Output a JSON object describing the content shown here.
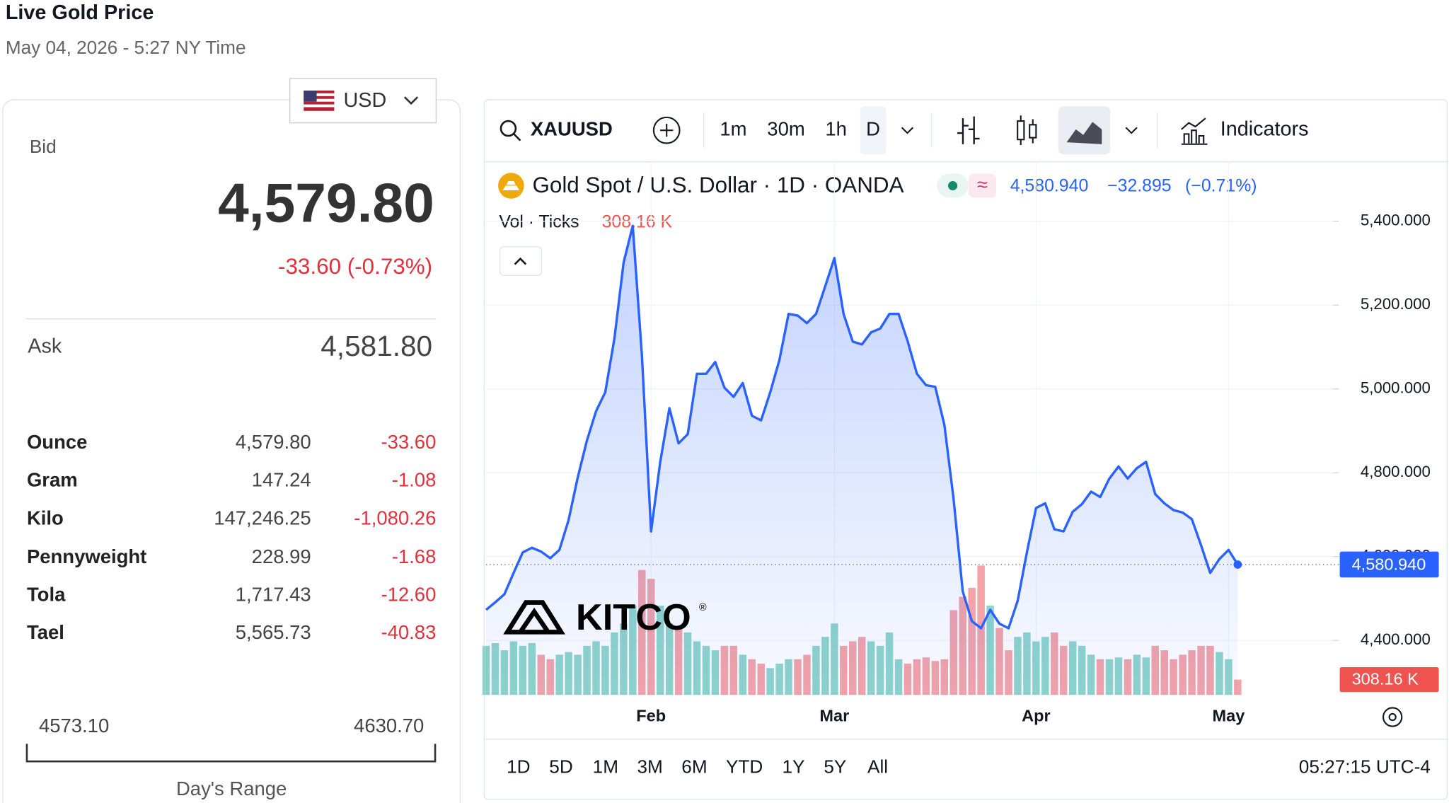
{
  "header": {
    "title": "Live Gold Price",
    "timestamp": "May 04, 2026 - 5:27 NY Time"
  },
  "currency": "USD",
  "quote": {
    "bid_label": "Bid",
    "bid": "4,579.80",
    "change": "-33.60 (-0.73%)",
    "ask_label": "Ask",
    "ask": "4,581.80"
  },
  "units": {
    "rows": [
      {
        "name": "Ounce",
        "price": "4,579.80",
        "change": "-33.60"
      },
      {
        "name": "Gram",
        "price": "147.24",
        "change": "-1.08"
      },
      {
        "name": "Kilo",
        "price": "147,246.25",
        "change": "-1,080.26"
      },
      {
        "name": "Pennyweight",
        "price": "228.99",
        "change": "-1.68"
      },
      {
        "name": "Tola",
        "price": "1,717.43",
        "change": "-12.60"
      },
      {
        "name": "Tael",
        "price": "5,565.73",
        "change": "-40.83"
      }
    ]
  },
  "day_range": {
    "low": "4573.10",
    "high": "4630.70",
    "label": "Day's Range"
  },
  "toolbar": {
    "symbol": "XAUUSD",
    "intervals": [
      "1m",
      "30m",
      "1h",
      "D"
    ],
    "indicators": "Indicators"
  },
  "legend": {
    "approx": "≈",
    "price": "4,580.940",
    "change": "−32.895",
    "change_pct": "(−0.71%)",
    "vol_value": "308.16 K"
  },
  "watermark": {
    "text": "KITCO",
    "mark": "®"
  },
  "chart_data": {
    "type": "line",
    "categories": [
      null,
      null,
      null,
      null,
      null,
      null,
      null,
      null,
      null,
      null,
      null,
      null,
      null,
      null,
      null,
      null,
      null,
      null,
      "Feb",
      null,
      null,
      null,
      null,
      null,
      null,
      null,
      null,
      null,
      null,
      null,
      null,
      null,
      null,
      null,
      null,
      null,
      null,
      null,
      "Mar",
      null,
      null,
      null,
      null,
      null,
      null,
      null,
      null,
      null,
      null,
      null,
      null,
      null,
      null,
      null,
      null,
      null,
      null,
      null,
      null,
      null,
      "Apr",
      null,
      null,
      null,
      null,
      null,
      null,
      null,
      null,
      null,
      null,
      null,
      null,
      null,
      null,
      null,
      null,
      null,
      null,
      null,
      null,
      "May",
      null
    ],
    "series": [
      {
        "name": "Gold Spot / U.S. Dollar · 1D · OANDA",
        "color": "#2962ff",
        "values": [
          4473,
          4491,
          4510,
          4561,
          4610,
          4621,
          4612,
          4596,
          4616,
          4687,
          4789,
          4877,
          4947,
          4992,
          5120,
          5301,
          5389,
          5080,
          4660,
          4826,
          4954,
          4870,
          4892,
          5036,
          5036,
          5064,
          5003,
          4981,
          5014,
          4936,
          4925,
          4992,
          5069,
          5179,
          5175,
          5157,
          5179,
          5245,
          5312,
          5179,
          5113,
          5106,
          5135,
          5144,
          5179,
          5179,
          5113,
          5036,
          5009,
          5005,
          4914,
          4738,
          4517,
          4446,
          4429,
          4473,
          4440,
          4429,
          4495,
          4610,
          4716,
          4727,
          4665,
          4660,
          4707,
          4725,
          4755,
          4742,
          4786,
          4815,
          4786,
          4811,
          4826,
          4749,
          4727,
          4711,
          4705,
          4689,
          4627,
          4561,
          4594,
          4616,
          4580.94
        ]
      },
      {
        "name": "Vol · Ticks",
        "axis": "volume",
        "up_color": "#8fd4cb",
        "down_color": "#f4a3a8",
        "values": [
          990,
          1044,
          900,
          1080,
          990,
          1044,
          810,
          720,
          810,
          864,
          810,
          990,
          1080,
          990,
          1260,
          1440,
          1800,
          2520,
          2340,
          1800,
          1440,
          1350,
          1260,
          1080,
          990,
          900,
          990,
          990,
          810,
          720,
          630,
          540,
          630,
          720,
          720,
          810,
          990,
          1170,
          1440,
          990,
          1080,
          1170,
          1080,
          990,
          1260,
          720,
          630,
          720,
          756,
          684,
          720,
          1710,
          1980,
          2160,
          2610,
          1800,
          1350,
          900,
          1170,
          1260,
          1080,
          1170,
          1260,
          990,
          1080,
          990,
          810,
          720,
          720,
          756,
          720,
          810,
          756,
          990,
          900,
          720,
          810,
          900,
          990,
          990,
          864,
          720,
          308.16
        ]
      }
    ],
    "ylim": [
      4270,
      5520
    ],
    "yticks": [
      {
        "value": 4400,
        "label": "4,400.000"
      },
      {
        "value": 4600,
        "label": "4,600.000"
      },
      {
        "value": 4800,
        "label": "4,800.000"
      },
      {
        "value": 5000,
        "label": "5,000.000"
      },
      {
        "value": 5200,
        "label": "5,200.000"
      },
      {
        "value": 5400,
        "label": "5,400.000"
      }
    ],
    "grid": true
  },
  "ranges": [
    "1D",
    "5D",
    "1M",
    "3M",
    "6M",
    "YTD",
    "1Y",
    "5Y",
    "All"
  ],
  "clock": "05:27:15 UTC-4"
}
